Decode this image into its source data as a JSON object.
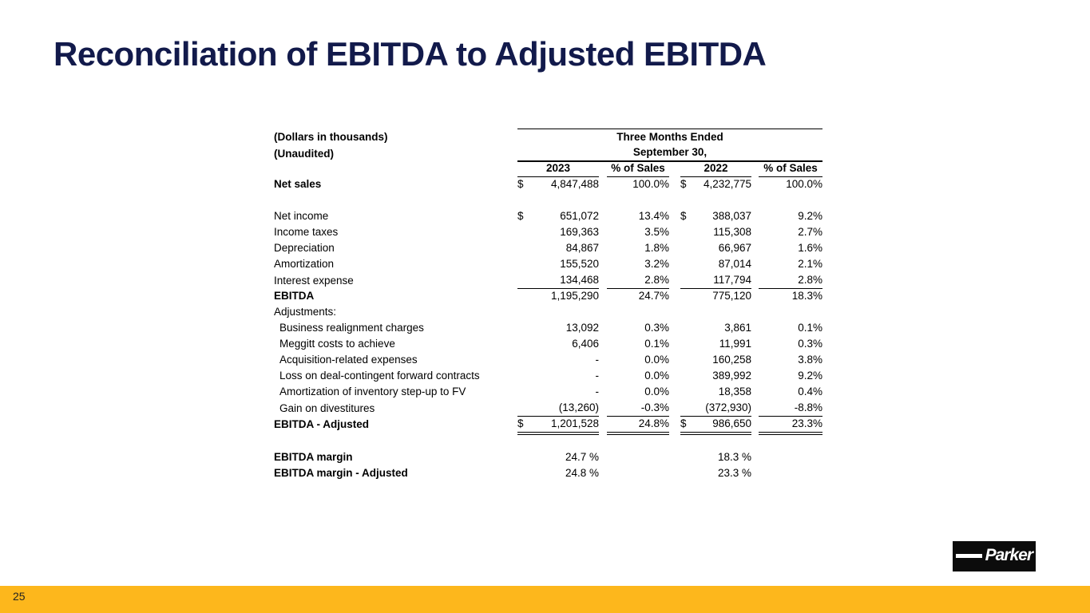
{
  "slide": {
    "title": "Reconciliation of EBITDA to Adjusted EBITDA",
    "page_number": "25"
  },
  "colors": {
    "title_navy": "#121a4b",
    "footer_gold": "#fdb71c",
    "logo_black": "#0c0c0c",
    "table_text": "#000000"
  },
  "logo": {
    "brand": "Parker"
  },
  "table": {
    "unit_note_line1": "(Dollars in thousands)",
    "unit_note_line2": "(Unaudited)",
    "period_header_line1": "Three Months Ended",
    "period_header_line2": "September 30,",
    "col_headers": {
      "year1": "2023",
      "pct1": "% of Sales",
      "year2": "2022",
      "pct2": "% of Sales"
    },
    "rows": [
      {
        "label": "Net sales",
        "bold": true,
        "d1": "$",
        "v1": "4,847,488",
        "p1": "100.0%",
        "d2": "$",
        "v2": "4,232,775",
        "p2": "100.0%"
      },
      {
        "spacer": true
      },
      {
        "label": "Net income",
        "d1": "$",
        "v1": "651,072",
        "p1": "13.4%",
        "d2": "$",
        "v2": "388,037",
        "p2": "9.2%"
      },
      {
        "label": "Income taxes",
        "v1": "169,363",
        "p1": "3.5%",
        "v2": "115,308",
        "p2": "2.7%"
      },
      {
        "label": "Depreciation",
        "v1": "84,867",
        "p1": "1.8%",
        "v2": "66,967",
        "p2": "1.6%"
      },
      {
        "label": "Amortization",
        "v1": "155,520",
        "p1": "3.2%",
        "v2": "87,014",
        "p2": "2.1%"
      },
      {
        "label": "Interest expense",
        "v1": "134,468",
        "p1": "2.8%",
        "v2": "117,794",
        "p2": "2.8%",
        "rule": true
      },
      {
        "label": "EBITDA",
        "bold": true,
        "v1": "1,195,290",
        "p1": "24.7%",
        "v2": "775,120",
        "p2": "18.3%"
      },
      {
        "label": "Adjustments:"
      },
      {
        "label": "Business realignment charges",
        "indent": true,
        "v1": "13,092",
        "p1": "0.3%",
        "v2": "3,861",
        "p2": "0.1%"
      },
      {
        "label": "Meggitt costs to achieve",
        "indent": true,
        "v1": "6,406",
        "p1": "0.1%",
        "v2": "11,991",
        "p2": "0.3%"
      },
      {
        "label": "Acquisition-related expenses",
        "indent": true,
        "v1": "-",
        "p1": "0.0%",
        "v2": "160,258",
        "p2": "3.8%"
      },
      {
        "label": "Loss on deal-contingent forward contracts",
        "indent": true,
        "v1": "-",
        "p1": "0.0%",
        "v2": "389,992",
        "p2": "9.2%"
      },
      {
        "label": "Amortization of inventory step-up to FV",
        "indent": true,
        "v1": "-",
        "p1": "0.0%",
        "v2": "18,358",
        "p2": "0.4%"
      },
      {
        "label": "Gain on divestitures",
        "indent": true,
        "v1": "(13,260)",
        "p1": "-0.3%",
        "v2": "(372,930)",
        "p2": "-8.8%",
        "rule": true
      },
      {
        "label": "EBITDA - Adjusted",
        "bold": true,
        "d1": "$",
        "v1": "1,201,528",
        "p1": "24.8%",
        "d2": "$",
        "v2": "986,650",
        "p2": "23.3%",
        "drule": true
      },
      {
        "spacer": true,
        "tall": true
      },
      {
        "label": "EBITDA margin",
        "bold": true,
        "v1": "24.7 %",
        "v2": "18.3 %"
      },
      {
        "label": "EBITDA margin - Adjusted",
        "bold": true,
        "v1": "24.8 %",
        "v2": "23.3 %"
      }
    ]
  }
}
